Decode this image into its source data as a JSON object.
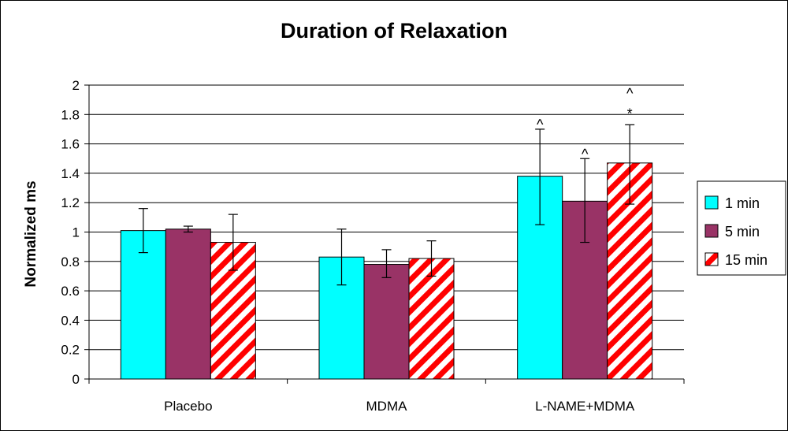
{
  "chart_data": {
    "type": "bar",
    "title": "Duration of Relaxation",
    "xlabel": "",
    "ylabel": "Normalized ms",
    "ylim": [
      0,
      2
    ],
    "yticks": [
      0,
      0.2,
      0.4,
      0.6,
      0.8,
      1,
      1.2,
      1.4,
      1.6,
      1.8,
      2
    ],
    "ytick_labels": [
      "0",
      "0.2",
      "0.4",
      "0.6",
      "0.8",
      "1",
      "1.2",
      "1.4",
      "1.6",
      "1.8",
      "2"
    ],
    "grid": true,
    "legend_position": "right",
    "categories": [
      "Placebo",
      "MDMA",
      "L-NAME+MDMA"
    ],
    "series": [
      {
        "name": "1 min",
        "color": "#00FFFF",
        "pattern": "solid",
        "values": [
          1.01,
          0.83,
          1.38
        ],
        "err_low": [
          0.86,
          0.64,
          1.05
        ],
        "err_high": [
          1.16,
          1.02,
          1.7
        ]
      },
      {
        "name": "5 min",
        "color": "#993366",
        "pattern": "solid",
        "values": [
          1.02,
          0.78,
          1.21
        ],
        "err_low": [
          1.0,
          0.69,
          0.93
        ],
        "err_high": [
          1.04,
          0.88,
          1.5
        ]
      },
      {
        "name": "15 min",
        "color": "#FF0000",
        "pattern": "diagonal-stripes",
        "values": [
          0.93,
          0.82,
          1.47
        ],
        "err_low": [
          0.74,
          0.7,
          1.19
        ],
        "err_high": [
          1.12,
          0.94,
          1.73
        ]
      }
    ],
    "annotations": [
      {
        "category": "L-NAME+MDMA",
        "series": "1 min",
        "text": "^"
      },
      {
        "category": "L-NAME+MDMA",
        "series": "5 min",
        "text": "^"
      },
      {
        "category": "L-NAME+MDMA",
        "series": "15 min",
        "text": "*"
      },
      {
        "category": "L-NAME+MDMA",
        "series": "15 min",
        "text": "^"
      }
    ]
  }
}
